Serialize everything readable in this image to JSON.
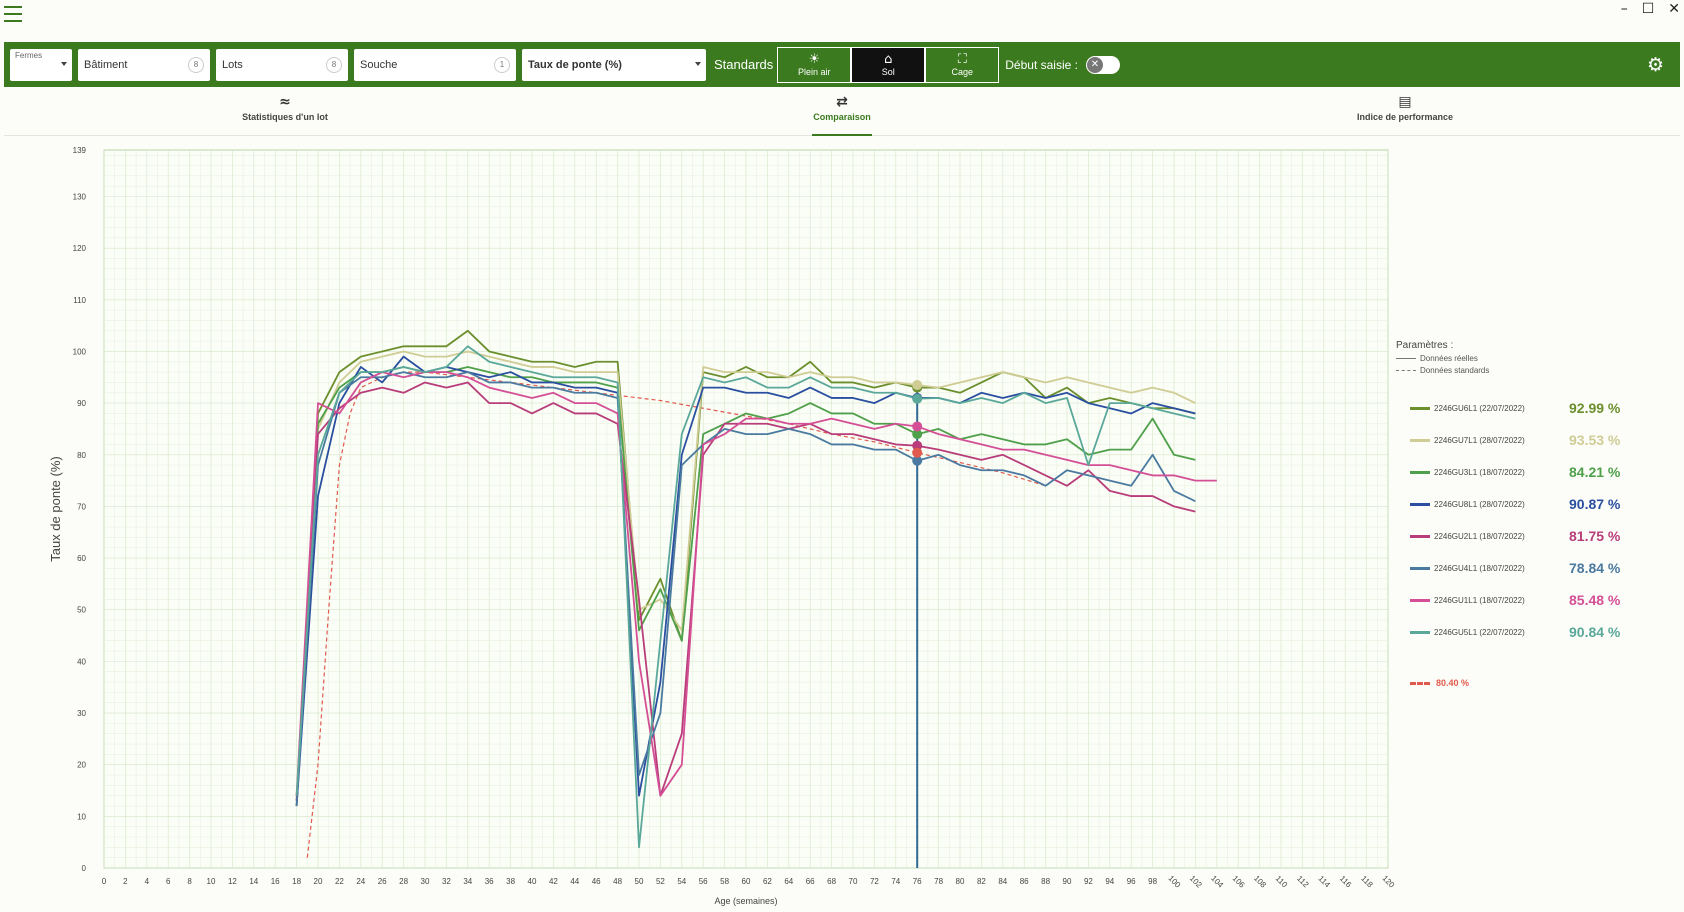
{
  "titlebar": {
    "minimize": "–",
    "maximize": "☐",
    "close": "✕"
  },
  "toolbar": {
    "fermes_label": "Fermes",
    "batiment": "Bâtiment",
    "batiment_badge": "8",
    "lots": "Lots",
    "lots_badge": "8",
    "souche": "Souche",
    "souche_badge": "1",
    "metric": "Taux de ponte (%)",
    "standards_label": "Standards",
    "std_buttons": [
      {
        "icon": "☀",
        "label": "Plein air"
      },
      {
        "icon": "⌂",
        "label": "Sol"
      },
      {
        "icon": "⛶",
        "label": "Cage"
      }
    ],
    "start_label": "Début saisie :",
    "toggle_icon": "✕",
    "gear_icon": "⚙"
  },
  "tabs": [
    {
      "icon": "≈",
      "label": "Statistiques d'un lot"
    },
    {
      "icon": "⇄",
      "label": "Comparaison"
    },
    {
      "icon": "▤",
      "label": "Indice de performance"
    }
  ],
  "legend": {
    "params_title": "Paramètres :",
    "real": "Données réelles",
    "standard": "Données standards",
    "standard_value": "80.40 %"
  },
  "chart_data": {
    "type": "line",
    "xlabel": "Age (semaines)",
    "ylabel": "Taux de ponte (%)",
    "xlim": [
      0,
      120
    ],
    "ylim": [
      0,
      139
    ],
    "x_ticks": [
      0,
      2,
      4,
      6,
      8,
      10,
      12,
      14,
      16,
      18,
      20,
      22,
      24,
      26,
      28,
      30,
      32,
      34,
      36,
      38,
      40,
      42,
      44,
      46,
      48,
      50,
      52,
      54,
      56,
      58,
      60,
      62,
      64,
      66,
      68,
      70,
      72,
      74,
      76,
      78,
      80,
      82,
      84,
      86,
      88,
      90,
      92,
      94,
      96,
      98,
      100,
      102,
      104,
      106,
      108,
      110,
      112,
      114,
      116,
      118,
      120
    ],
    "y_ticks": [
      0,
      10,
      20,
      30,
      40,
      50,
      60,
      70,
      80,
      90,
      100,
      110,
      120,
      130,
      139
    ],
    "cursor_x": 76,
    "grid": true,
    "series": [
      {
        "name": "2246GU6L1 (22/07/2022)",
        "value_label": "92.99 %",
        "color": "#6b8f2c",
        "x": [
          18,
          20,
          22,
          24,
          26,
          28,
          30,
          32,
          34,
          36,
          38,
          40,
          42,
          44,
          46,
          48,
          50,
          52,
          54,
          56,
          58,
          60,
          62,
          64,
          66,
          68,
          70,
          72,
          74,
          76,
          78,
          80,
          82,
          84,
          86,
          88,
          90,
          92,
          94,
          96,
          98,
          100,
          102
        ],
        "y": [
          12,
          88,
          96,
          99,
          100,
          101,
          101,
          101,
          104,
          100,
          99,
          98,
          98,
          97,
          98,
          98,
          48,
          56,
          44,
          96,
          95,
          97,
          95,
          95,
          98,
          94,
          94,
          93,
          94,
          93,
          93,
          92,
          94,
          96,
          95,
          91,
          93,
          90,
          91,
          90,
          89,
          89,
          88
        ]
      },
      {
        "name": "2246GU7L1 (28/07/2022)",
        "value_label": "93.53 %",
        "color": "#cfcc94",
        "x": [
          18,
          20,
          22,
          24,
          26,
          28,
          30,
          32,
          34,
          36,
          38,
          40,
          42,
          44,
          46,
          48,
          50,
          52,
          54,
          56,
          58,
          60,
          62,
          64,
          66,
          68,
          70,
          72,
          74,
          76,
          78,
          80,
          82,
          84,
          86,
          88,
          90,
          92,
          94,
          96,
          98,
          100,
          102
        ],
        "y": [
          14,
          85,
          94,
          98,
          99,
          100,
          99,
          99,
          100,
          99,
          98,
          97,
          97,
          96,
          96,
          96,
          50,
          52,
          46,
          97,
          96,
          96,
          96,
          95,
          96,
          95,
          95,
          94,
          94,
          93.5,
          93,
          94,
          95,
          96,
          95,
          94,
          95,
          94,
          93,
          92,
          93,
          92,
          90
        ]
      },
      {
        "name": "2246GU3L1 (18/07/2022)",
        "value_label": "84.21 %",
        "color": "#4fa04a",
        "x": [
          18,
          20,
          22,
          24,
          26,
          28,
          30,
          32,
          34,
          36,
          38,
          40,
          42,
          44,
          46,
          48,
          50,
          52,
          54,
          56,
          58,
          60,
          62,
          64,
          66,
          68,
          70,
          72,
          74,
          76,
          78,
          80,
          82,
          84,
          86,
          88,
          90,
          92,
          94,
          96,
          98,
          100,
          102
        ],
        "y": [
          13,
          86,
          93,
          96,
          96,
          97,
          96,
          96,
          97,
          96,
          95,
          95,
          94,
          94,
          94,
          93,
          46,
          54,
          44,
          84,
          86,
          88,
          87,
          88,
          90,
          88,
          88,
          86,
          86,
          84,
          85,
          83,
          84,
          83,
          82,
          82,
          83,
          80,
          81,
          81,
          87,
          80,
          79
        ]
      },
      {
        "name": "2246GU8L1 (28/07/2022)",
        "value_label": "90.87 %",
        "color": "#2a4fa0",
        "x": [
          18,
          20,
          22,
          24,
          26,
          28,
          30,
          32,
          34,
          36,
          38,
          40,
          42,
          44,
          46,
          48,
          50,
          52,
          54,
          56,
          58,
          60,
          62,
          64,
          66,
          68,
          70,
          72,
          74,
          76,
          78,
          80,
          82,
          84,
          86,
          88,
          90,
          92,
          94,
          96,
          98,
          100,
          102
        ],
        "y": [
          12,
          72,
          90,
          97,
          94,
          99,
          96,
          97,
          96,
          95,
          96,
          94,
          94,
          93,
          93,
          92,
          14,
          36,
          80,
          93,
          93,
          92,
          92,
          91,
          93,
          91,
          91,
          90,
          92,
          91,
          91,
          90,
          92,
          91,
          92,
          91,
          92,
          90,
          89,
          88,
          90,
          89,
          88
        ]
      },
      {
        "name": "2246GU2L1 (18/07/2022)",
        "value_label": "81.75 %",
        "color": "#b83d7a",
        "x": [
          18,
          20,
          22,
          24,
          26,
          28,
          30,
          32,
          34,
          36,
          38,
          40,
          42,
          44,
          46,
          48,
          50,
          52,
          54,
          56,
          58,
          60,
          62,
          64,
          66,
          68,
          70,
          72,
          74,
          76,
          78,
          80,
          82,
          84,
          86,
          88,
          90,
          92,
          94,
          96,
          98,
          100,
          102
        ],
        "y": [
          13,
          84,
          89,
          92,
          93,
          92,
          94,
          93,
          94,
          90,
          90,
          88,
          90,
          88,
          88,
          86,
          52,
          14,
          26,
          80,
          86,
          86,
          86,
          85,
          86,
          84,
          84,
          83,
          82,
          81.75,
          81,
          80,
          79,
          80,
          78,
          76,
          74,
          77,
          73,
          72,
          72,
          70,
          69
        ]
      },
      {
        "name": "2246GU4L1 (18/07/2022)",
        "value_label": "78.84 %",
        "color": "#4a7aa0",
        "x": [
          18,
          20,
          22,
          24,
          26,
          28,
          30,
          32,
          34,
          36,
          38,
          40,
          42,
          44,
          46,
          48,
          50,
          52,
          54,
          56,
          58,
          60,
          62,
          64,
          66,
          68,
          70,
          72,
          74,
          76,
          78,
          80,
          82,
          84,
          86,
          88,
          90,
          92,
          94,
          96,
          98,
          100,
          102
        ],
        "y": [
          12,
          78,
          92,
          95,
          95,
          96,
          95,
          95,
          96,
          94,
          94,
          93,
          93,
          92,
          92,
          91,
          18,
          30,
          78,
          82,
          85,
          84,
          84,
          85,
          84,
          82,
          82,
          81,
          81,
          78.84,
          80,
          78,
          77,
          77,
          76,
          74,
          77,
          76,
          75,
          74,
          80,
          73,
          71
        ]
      },
      {
        "name": "2246GU1L1 (18/07/2022)",
        "value_label": "85.48 %",
        "color": "#d44f96",
        "x": [
          18,
          20,
          22,
          24,
          26,
          28,
          30,
          32,
          34,
          36,
          38,
          40,
          42,
          44,
          46,
          48,
          50,
          52,
          54,
          56,
          58,
          60,
          62,
          64,
          66,
          68,
          70,
          72,
          74,
          76,
          78,
          80,
          82,
          84,
          86,
          88,
          90,
          92,
          94,
          96,
          98,
          100,
          102,
          104
        ],
        "y": [
          14,
          90,
          88,
          94,
          96,
          95,
          96,
          96,
          95,
          93,
          92,
          91,
          92,
          90,
          90,
          88,
          40,
          14,
          20,
          82,
          84,
          87,
          87,
          86,
          86,
          87,
          86,
          85,
          86,
          85.48,
          84,
          83,
          82,
          81,
          81,
          80,
          79,
          78,
          78,
          77,
          76,
          76,
          75,
          75
        ]
      },
      {
        "name": "2246GU5L1 (22/07/2022)",
        "value_label": "90.84 %",
        "color": "#5aa89a",
        "x": [
          18,
          20,
          22,
          24,
          26,
          28,
          30,
          32,
          34,
          36,
          38,
          40,
          42,
          44,
          46,
          48,
          50,
          52,
          54,
          56,
          58,
          60,
          62,
          64,
          66,
          68,
          70,
          72,
          74,
          76,
          78,
          80,
          82,
          84,
          86,
          88,
          90,
          92,
          94,
          96,
          98,
          100,
          102
        ],
        "y": [
          14,
          80,
          92,
          96,
          96,
          97,
          96,
          97,
          101,
          98,
          97,
          96,
          95,
          95,
          95,
          94,
          4,
          44,
          84,
          95,
          94,
          95,
          93,
          93,
          95,
          93,
          93,
          92,
          92,
          90.84,
          91,
          90,
          91,
          90,
          92,
          90,
          91,
          78,
          90,
          90,
          89,
          88,
          87
        ]
      }
    ],
    "standard_curve": {
      "name": "Standard",
      "value_label": "80.40 %",
      "color": "#e05a4d",
      "x": [
        19,
        20,
        21,
        22,
        23,
        24,
        26,
        28,
        30,
        32,
        34,
        36,
        40,
        44,
        48,
        52,
        56,
        60,
        64,
        68,
        72,
        76,
        80,
        84,
        88
      ],
      "y": [
        2,
        20,
        50,
        78,
        88,
        93,
        95,
        96,
        96,
        95.5,
        95,
        94.5,
        93.5,
        92.5,
        91.5,
        90.5,
        89,
        87.5,
        86,
        84,
        82.5,
        80.4,
        78.5,
        76.5,
        74
      ]
    }
  }
}
